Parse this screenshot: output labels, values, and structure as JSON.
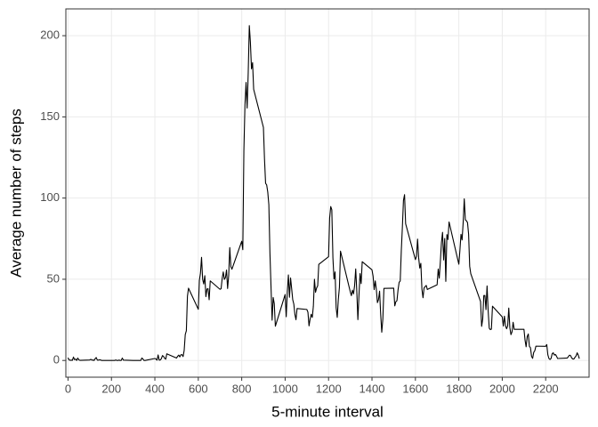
{
  "chart_data": {
    "type": "line",
    "x_label": "5-minute interval",
    "y_label": "Average number of steps",
    "x": [
      0,
      5,
      10,
      15,
      20,
      25,
      30,
      35,
      40,
      45,
      50,
      55,
      100,
      105,
      110,
      115,
      120,
      125,
      130,
      135,
      140,
      145,
      150,
      155,
      200,
      205,
      210,
      215,
      220,
      225,
      230,
      235,
      240,
      245,
      250,
      255,
      300,
      305,
      310,
      315,
      320,
      325,
      330,
      335,
      340,
      345,
      350,
      355,
      400,
      405,
      410,
      415,
      420,
      425,
      430,
      435,
      440,
      445,
      450,
      455,
      500,
      505,
      510,
      515,
      520,
      525,
      530,
      535,
      540,
      545,
      550,
      555,
      600,
      605,
      610,
      615,
      620,
      625,
      630,
      635,
      640,
      645,
      650,
      655,
      700,
      705,
      710,
      715,
      720,
      725,
      730,
      735,
      740,
      745,
      750,
      755,
      800,
      805,
      810,
      815,
      820,
      825,
      830,
      835,
      840,
      845,
      850,
      855,
      900,
      905,
      910,
      915,
      920,
      925,
      930,
      935,
      940,
      945,
      950,
      955,
      1000,
      1005,
      1010,
      1015,
      1020,
      1025,
      1030,
      1035,
      1040,
      1045,
      1050,
      1055,
      1100,
      1105,
      1110,
      1115,
      1120,
      1125,
      1130,
      1135,
      1140,
      1145,
      1150,
      1155,
      1200,
      1205,
      1210,
      1215,
      1220,
      1225,
      1230,
      1235,
      1240,
      1245,
      1250,
      1255,
      1300,
      1305,
      1310,
      1315,
      1320,
      1325,
      1330,
      1335,
      1340,
      1345,
      1350,
      1355,
      1400,
      1405,
      1410,
      1415,
      1420,
      1425,
      1430,
      1435,
      1440,
      1445,
      1450,
      1455,
      1500,
      1505,
      1510,
      1515,
      1520,
      1525,
      1530,
      1535,
      1540,
      1545,
      1550,
      1555,
      1600,
      1605,
      1610,
      1615,
      1620,
      1625,
      1630,
      1635,
      1640,
      1645,
      1650,
      1655,
      1700,
      1705,
      1710,
      1715,
      1720,
      1725,
      1730,
      1735,
      1740,
      1745,
      1750,
      1755,
      1800,
      1805,
      1810,
      1815,
      1820,
      1825,
      1830,
      1835,
      1840,
      1845,
      1850,
      1855,
      1900,
      1905,
      1910,
      1915,
      1920,
      1925,
      1930,
      1935,
      1940,
      1945,
      1950,
      1955,
      2000,
      2005,
      2010,
      2015,
      2020,
      2025,
      2030,
      2035,
      2040,
      2045,
      2050,
      2055,
      2100,
      2105,
      2110,
      2115,
      2120,
      2125,
      2130,
      2135,
      2140,
      2145,
      2150,
      2155,
      2200,
      2205,
      2210,
      2215,
      2220,
      2225,
      2230,
      2235,
      2240,
      2245,
      2250,
      2255,
      2300,
      2305,
      2310,
      2315,
      2320,
      2325,
      2330,
      2335,
      2340,
      2345,
      2350,
      2355
    ],
    "series": [
      {
        "color": "#000000",
        "values": [
          1.7,
          0.3,
          0.1,
          0.2,
          0.1,
          2.1,
          0.5,
          0.9,
          0,
          1.5,
          0.3,
          0.1,
          0.3,
          0.7,
          0.2,
          0.3,
          0,
          1.1,
          1.8,
          0.2,
          0.2,
          0.4,
          0.3,
          0,
          0,
          0,
          0,
          0,
          0.3,
          0,
          0,
          0.2,
          0,
          0,
          1.5,
          0.2,
          0,
          0,
          0,
          0,
          0,
          0,
          0,
          0,
          1.5,
          0.9,
          0,
          0,
          1.2,
          0.9,
          0.2,
          3.4,
          0.2,
          0.3,
          1.1,
          3,
          2.5,
          1.3,
          0.8,
          4.1,
          1.5,
          2.6,
          3.3,
          2.2,
          3.5,
          3.6,
          2.4,
          6.2,
          16,
          18.3,
          39.5,
          44.5,
          31.5,
          49.3,
          53.8,
          63.5,
          50,
          47.1,
          52.2,
          39.3,
          44,
          44.2,
          37.4,
          49,
          43.8,
          44.2,
          50.5,
          54.5,
          49.9,
          51,
          55.7,
          44.3,
          52.3,
          69.5,
          57.8,
          56.2,
          73.4,
          68.2,
          129.4,
          157.5,
          171.2,
          155.4,
          177.3,
          206.2,
          195.9,
          179.6,
          183.4,
          167,
          143.5,
          124,
          109.1,
          108.1,
          103.7,
          95.9,
          66.2,
          45.2,
          24.8,
          38.8,
          34.9,
          21.1,
          40.6,
          26.9,
          42.4,
          52.7,
          38.9,
          50.8,
          44.3,
          37.4,
          34.7,
          28.3,
          25.1,
          32,
          31.4,
          29.7,
          21.3,
          25.5,
          28.4,
          26.5,
          33.4,
          49.98,
          42,
          44.6,
          46,
          59.2,
          63.9,
          87.7,
          94.8,
          92.8,
          63.4,
          50.2,
          54.5,
          32.4,
          26.5,
          37.7,
          45,
          67.3,
          42.3,
          39.9,
          43.3,
          40.98,
          46.2,
          56.4,
          42.8,
          25.1,
          39.96,
          53.5,
          47.3,
          60.8,
          55.8,
          51.96,
          43.6,
          49,
          43.8,
          35.6,
          37.5,
          42.7,
          28.5,
          17.4,
          25.5,
          44.4,
          44.5,
          33.6,
          36.2,
          36.8,
          43.4,
          48.1,
          48.9,
          67.4,
          82.1,
          98.6,
          102.1,
          84.2,
          62.1,
          64.1,
          74.7,
          63.2,
          56.9,
          59.8,
          43.9,
          38.6,
          44.7,
          45.5,
          46.2,
          43.7,
          46.6,
          56.3,
          50.7,
          61.2,
          72.7,
          78.9,
          61.9,
          75.1,
          48.7,
          77.5,
          74.5,
          85.3,
          59.3,
          67.8,
          77.7,
          74.2,
          85,
          99.5,
          86.6,
          86,
          84.9,
          77.8,
          58,
          53.4,
          36.3,
          21,
          25.5,
          40,
          40,
          31.3,
          45.9,
          30.7,
          19.9,
          19,
          19.3,
          33.4,
          26.8,
          21.2,
          27.3,
          21.3,
          19.5,
          21.3,
          32.3,
          20.2,
          15.9,
          17.6,
          23.5,
          19.2,
          19.2,
          12.5,
          8.4,
          14.7,
          16.3,
          8.7,
          7.8,
          2.5,
          1.3,
          5,
          6,
          8.8,
          8.7,
          9.8,
          3.5,
          1.2,
          0.6,
          1.3,
          4.2,
          4.7,
          3.3,
          3.7,
          2.6,
          1.2,
          1.5,
          2.5,
          3.3,
          2.9,
          1.5,
          0.9,
          0.9,
          1.9,
          2.8,
          4.7,
          3.3,
          1.1
        ]
      }
    ],
    "xlim": [
      -10,
      2400
    ],
    "ylim": [
      -10.3,
      216.5
    ],
    "xticks": [
      0,
      200,
      400,
      600,
      800,
      1000,
      1200,
      1400,
      1600,
      1800,
      2000,
      2200
    ],
    "yticks": [
      0,
      50,
      100,
      150,
      200
    ],
    "grid": true
  }
}
